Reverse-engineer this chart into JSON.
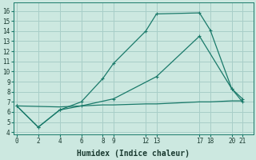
{
  "xlabel": "Humidex (Indice chaleur)",
  "bg_color": "#cce8e0",
  "grid_color": "#a8cec8",
  "line_color": "#1a7a6a",
  "xticks": [
    0,
    2,
    4,
    6,
    8,
    9,
    12,
    13,
    17,
    18,
    20,
    21
  ],
  "yticks": [
    4,
    5,
    6,
    7,
    8,
    9,
    10,
    11,
    12,
    13,
    14,
    15,
    16
  ],
  "xlim": [
    -0.3,
    22
  ],
  "ylim": [
    3.8,
    16.8
  ],
  "line1_x": [
    0,
    2,
    4,
    6,
    8,
    9,
    12,
    13,
    17,
    18,
    20,
    21
  ],
  "line1_y": [
    6.6,
    4.5,
    6.2,
    7.0,
    9.3,
    10.8,
    14.0,
    15.7,
    15.8,
    14.1,
    8.3,
    7.0
  ],
  "line2_x": [
    0,
    4,
    6,
    8,
    9,
    12,
    13,
    17,
    18,
    20,
    21
  ],
  "line2_y": [
    6.6,
    6.5,
    6.6,
    6.7,
    6.7,
    6.8,
    6.8,
    7.0,
    7.0,
    7.1,
    7.1
  ],
  "line3_x": [
    0,
    2,
    4,
    6,
    9,
    13,
    17,
    20,
    21
  ],
  "line3_y": [
    6.6,
    4.5,
    6.2,
    6.6,
    7.3,
    9.5,
    13.5,
    8.3,
    7.3
  ]
}
